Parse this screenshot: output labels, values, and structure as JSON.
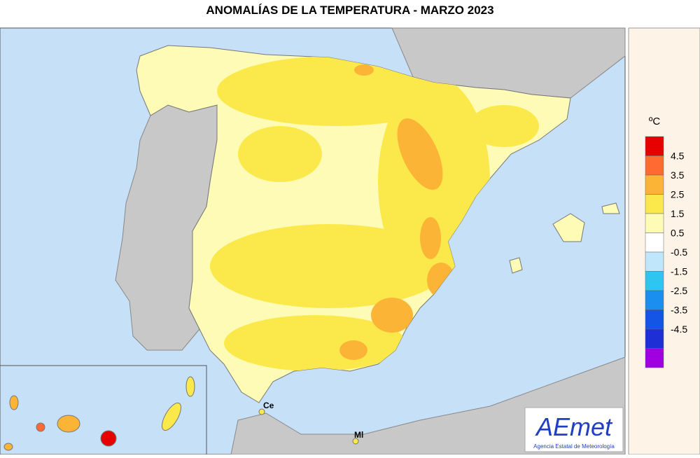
{
  "title": "ANOMALÍAS DE LA TEMPERATURA - MARZO 2023",
  "legend": {
    "unit": "ºC",
    "colors": [
      "#e60000",
      "#ff6a32",
      "#fbb436",
      "#fbe94c",
      "#fefbb6",
      "#ffffff",
      "#bfe6fa",
      "#2ec6f0",
      "#1a8ff0",
      "#1555e6",
      "#1f2fd6",
      "#a000e0"
    ],
    "thresholds": [
      4.5,
      3.5,
      2.5,
      1.5,
      0.5,
      -0.5,
      -1.5,
      -2.5,
      -3.5,
      -4.5
    ]
  },
  "places": [
    "Ce",
    "Ml"
  ],
  "logo": {
    "name": "AEmet",
    "subtitle": "Agencia Estatal de Meteorología"
  }
}
